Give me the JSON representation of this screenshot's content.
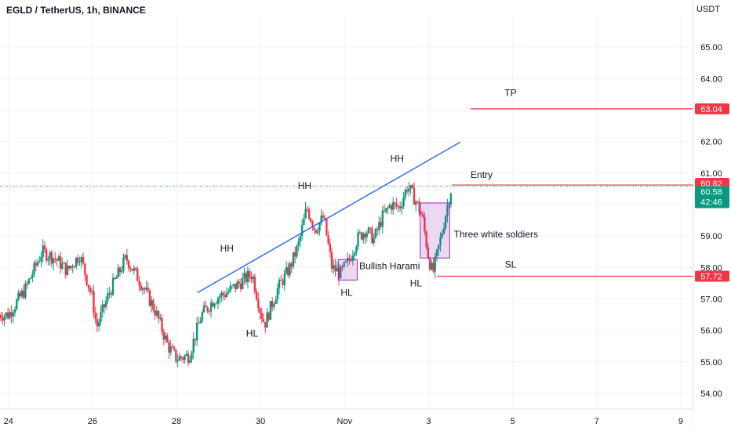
{
  "header": {
    "title": "EGLD / TetherUS, 1h, BINANCE",
    "unit": "USDT"
  },
  "chart_data": {
    "type": "candlestick",
    "ylim": [
      53.5,
      66.0
    ],
    "y_ticks": [
      54.0,
      55.0,
      56.0,
      57.0,
      58.0,
      59.0,
      60.0,
      61.0,
      62.0,
      63.0,
      64.0,
      65.0
    ],
    "x_ticks": [
      {
        "label": "24",
        "day": 24
      },
      {
        "label": "26",
        "day": 26
      },
      {
        "label": "28",
        "day": 28
      },
      {
        "label": "30",
        "day": 30
      },
      {
        "label": "Nov",
        "day": 32
      },
      {
        "label": "3",
        "day": 34
      },
      {
        "label": "5",
        "day": 36
      },
      {
        "label": "7",
        "day": 38
      },
      {
        "label": "9",
        "day": 40
      }
    ],
    "x_range_days": [
      23.8,
      40.3
    ],
    "price_path": [
      [
        24.0,
        56.5
      ],
      [
        24.4,
        57.3
      ],
      [
        24.8,
        58.5
      ],
      [
        25.1,
        58.3
      ],
      [
        25.4,
        57.9
      ],
      [
        25.7,
        58.4
      ],
      [
        26.0,
        57.0
      ],
      [
        26.1,
        56.1
      ],
      [
        26.4,
        57.2
      ],
      [
        26.8,
        58.3
      ],
      [
        27.2,
        57.4
      ],
      [
        27.5,
        56.6
      ],
      [
        27.8,
        55.5
      ],
      [
        28.0,
        55.1
      ],
      [
        28.3,
        55.2
      ],
      [
        28.6,
        56.5
      ],
      [
        28.9,
        57.0
      ],
      [
        29.2,
        57.2
      ],
      [
        29.5,
        57.5
      ],
      [
        29.8,
        57.8
      ],
      [
        30.0,
        56.6
      ],
      [
        30.1,
        56.2
      ],
      [
        30.4,
        57.3
      ],
      [
        30.7,
        58.0
      ],
      [
        30.9,
        58.7
      ],
      [
        31.1,
        59.9
      ],
      [
        31.3,
        59.2
      ],
      [
        31.5,
        59.6
      ],
      [
        31.7,
        58.0
      ],
      [
        31.9,
        57.8
      ],
      [
        32.1,
        58.2
      ],
      [
        32.3,
        58.9
      ],
      [
        32.5,
        59.2
      ],
      [
        32.7,
        58.9
      ],
      [
        32.9,
        59.6
      ],
      [
        33.1,
        60.0
      ],
      [
        33.3,
        59.9
      ],
      [
        33.5,
        60.6
      ],
      [
        33.7,
        60.1
      ],
      [
        33.85,
        59.6
      ],
      [
        34.0,
        58.3
      ],
      [
        34.1,
        57.8
      ],
      [
        34.3,
        59.0
      ],
      [
        34.45,
        60.0
      ],
      [
        34.55,
        60.58
      ]
    ],
    "trendline": {
      "start": [
        28.5,
        57.2
      ],
      "end": [
        34.75,
        61.98
      ]
    },
    "current_price": 60.58,
    "countdown": "42:46",
    "levels": [
      {
        "name": "TP",
        "value": 63.04,
        "from_day": 35.0
      },
      {
        "name": "Entry",
        "value": 60.62,
        "from_day": 34.55
      },
      {
        "name": "SL",
        "value": 57.72,
        "from_day": 34.2
      }
    ],
    "boxes": [
      {
        "name": "Bullish Harami",
        "from_day": 31.85,
        "to_day": 32.3,
        "y_low": 57.6,
        "y_high": 58.25
      },
      {
        "name": "Three white soldiers",
        "from_day": 33.8,
        "to_day": 34.5,
        "y_low": 58.3,
        "y_high": 60.05
      }
    ],
    "annotations": [
      {
        "text": "HH",
        "day": 29.2,
        "value": 58.5
      },
      {
        "text": "HL",
        "day": 29.8,
        "value": 55.8
      },
      {
        "text": "HH",
        "day": 31.05,
        "value": 60.5
      },
      {
        "text": "HL",
        "day": 32.05,
        "value": 57.1
      },
      {
        "text": "HH",
        "day": 33.25,
        "value": 61.35
      },
      {
        "text": "HL",
        "day": 33.7,
        "value": 57.4
      },
      {
        "text": "Bullish Harami",
        "day": 32.35,
        "value": 57.95
      },
      {
        "text": "Three white soldiers",
        "day": 34.6,
        "value": 58.95
      },
      {
        "text": "TP",
        "day": 35.95,
        "value": 63.45
      },
      {
        "text": "Entry",
        "day": 35.0,
        "value": 60.85
      },
      {
        "text": "SL",
        "day": 35.95,
        "value": 58.0
      }
    ],
    "colors": {
      "up": "#089981",
      "down": "#f23645",
      "trend": "#2962ff",
      "level": "#f23645",
      "box": "#9c27b0",
      "last": "#089981"
    }
  }
}
